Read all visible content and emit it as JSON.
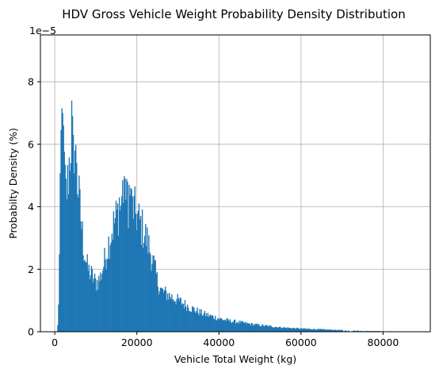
{
  "chart_data": {
    "type": "bar",
    "title": "HDV Gross Vehicle Weight Probability Density Distribution",
    "xlabel": "Vehicle Total Weight (kg)",
    "ylabel": "Probabilty Density (%)",
    "y_offset_text": "1e−5",
    "xlim": [
      -3500,
      91500
    ],
    "ylim": [
      0,
      9.5
    ],
    "x_ticks": [
      0,
      20000,
      40000,
      60000,
      80000
    ],
    "x_tick_labels": [
      "0",
      "20000",
      "40000",
      "60000",
      "80000"
    ],
    "y_ticks": [
      0,
      2,
      4,
      6,
      8
    ],
    "y_tick_labels": [
      "0",
      "2",
      "4",
      "6",
      "8"
    ],
    "grid": true,
    "legend": "none",
    "bar_color": "#1f77b4",
    "bin_width": 200,
    "y_scale": "1e-5",
    "histogram_profile_points": [
      [
        600,
        0
      ],
      [
        800,
        0.4
      ],
      [
        1000,
        1.5
      ],
      [
        1200,
        3.2
      ],
      [
        1400,
        5.2
      ],
      [
        1600,
        6.8
      ],
      [
        1800,
        7.1
      ],
      [
        2000,
        6.5
      ],
      [
        2300,
        5.3
      ],
      [
        2600,
        4.4
      ],
      [
        3000,
        4.6
      ],
      [
        3400,
        5.2
      ],
      [
        3800,
        6.0
      ],
      [
        4200,
        6.6
      ],
      [
        4600,
        6.2
      ],
      [
        5000,
        5.6
      ],
      [
        5600,
        4.7
      ],
      [
        6200,
        3.8
      ],
      [
        7000,
        2.7
      ],
      [
        8000,
        2.0
      ],
      [
        9000,
        1.8
      ],
      [
        10000,
        1.55
      ],
      [
        11000,
        1.7
      ],
      [
        12000,
        2.2
      ],
      [
        13000,
        2.8
      ],
      [
        14000,
        3.3
      ],
      [
        15000,
        3.7
      ],
      [
        16000,
        4.0
      ],
      [
        17000,
        4.2
      ],
      [
        18000,
        4.15
      ],
      [
        19000,
        4.0
      ],
      [
        20000,
        3.7
      ],
      [
        21000,
        3.4
      ],
      [
        22000,
        3.1
      ],
      [
        23000,
        2.7
      ],
      [
        24000,
        2.2
      ],
      [
        25000,
        1.6
      ],
      [
        26000,
        1.3
      ],
      [
        28000,
        1.15
      ],
      [
        30000,
        1.0
      ],
      [
        32000,
        0.85
      ],
      [
        34000,
        0.7
      ],
      [
        36000,
        0.58
      ],
      [
        38000,
        0.5
      ],
      [
        40000,
        0.42
      ],
      [
        42000,
        0.36
      ],
      [
        45000,
        0.3
      ],
      [
        48000,
        0.24
      ],
      [
        52000,
        0.18
      ],
      [
        56000,
        0.13
      ],
      [
        60000,
        0.1
      ],
      [
        64000,
        0.08
      ],
      [
        68000,
        0.06
      ],
      [
        72000,
        0.04
      ],
      [
        76000,
        0.025
      ],
      [
        80000,
        0.015
      ],
      [
        84000,
        0.01
      ],
      [
        88000,
        0.005
      ],
      [
        90000,
        0
      ]
    ],
    "histogram_spikes": [
      [
        1600,
        7.15
      ],
      [
        1800,
        7.0
      ],
      [
        2000,
        6.6
      ],
      [
        4000,
        7.4
      ],
      [
        4200,
        6.9
      ],
      [
        4400,
        6.3
      ],
      [
        4800,
        5.8
      ],
      [
        5200,
        5.4
      ],
      [
        16400,
        4.85
      ],
      [
        17000,
        4.9
      ],
      [
        17600,
        4.8
      ],
      [
        18000,
        4.7
      ],
      [
        18400,
        4.6
      ],
      [
        19200,
        4.35
      ],
      [
        15600,
        4.3
      ],
      [
        20400,
        4.1
      ]
    ]
  }
}
